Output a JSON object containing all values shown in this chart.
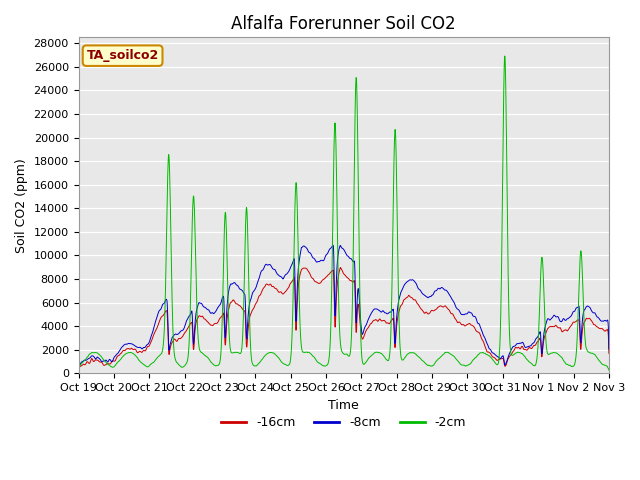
{
  "title": "Alfalfa Forerunner Soil CO2",
  "ylabel": "Soil CO2 (ppm)",
  "xlabel": "Time",
  "legend_label": "TA_soilco2",
  "series_labels": [
    "-16cm",
    "-8cm",
    "-2cm"
  ],
  "series_colors": [
    "#cc0000",
    "#0000cc",
    "#00bb00"
  ],
  "ylim": [
    0,
    28500
  ],
  "yticks": [
    0,
    2000,
    4000,
    6000,
    8000,
    10000,
    12000,
    14000,
    16000,
    18000,
    20000,
    22000,
    24000,
    26000,
    28000
  ],
  "xtick_labels": [
    "Oct 19",
    "Oct 20",
    "Oct 21",
    "Oct 22",
    "Oct 23",
    "Oct 24",
    "Oct 25",
    "Oct 26",
    "Oct 27",
    "Oct 28",
    "Oct 29",
    "Oct 30",
    "Oct 31",
    "Nov 1",
    "Nov 2",
    "Nov 3"
  ],
  "bg_color": "#e8e8e8",
  "title_fontsize": 12,
  "axis_fontsize": 9,
  "tick_fontsize": 8,
  "grid_color": "#ffffff",
  "annotation_color": "#8b0000",
  "annotation_bg": "#ffffcc",
  "annotation_edge": "#cc8800"
}
